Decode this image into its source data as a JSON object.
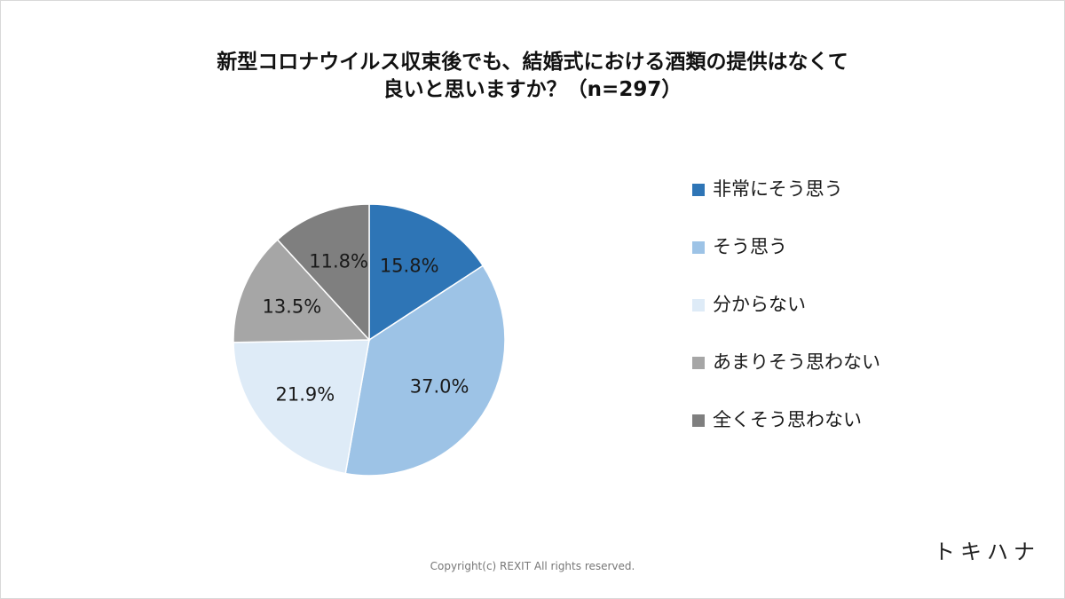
{
  "chart_data": {
    "type": "pie",
    "title_lines": [
      "新型コロナウイルス収束後でも、結婚式における酒類の提供はなくて",
      "良いと思いますか？（n=297）"
    ],
    "categories": [
      "非常にそう思う",
      "そう思う",
      "分からない",
      "あまりそう思わない",
      "全くそう思わない"
    ],
    "values": [
      15.8,
      37.0,
      21.9,
      13.5,
      11.8
    ],
    "value_labels": [
      "15.8%",
      "37.0%",
      "21.9%",
      "13.5%",
      "11.8%"
    ],
    "colors": [
      "#2e75b6",
      "#9dc3e6",
      "#deebf7",
      "#a6a6a6",
      "#7f7f7f"
    ],
    "legend_position": "right",
    "start": "top, clockwise"
  },
  "brand": "トキハナ",
  "copyright": "Copyright(c) REXIT All rights reserved."
}
